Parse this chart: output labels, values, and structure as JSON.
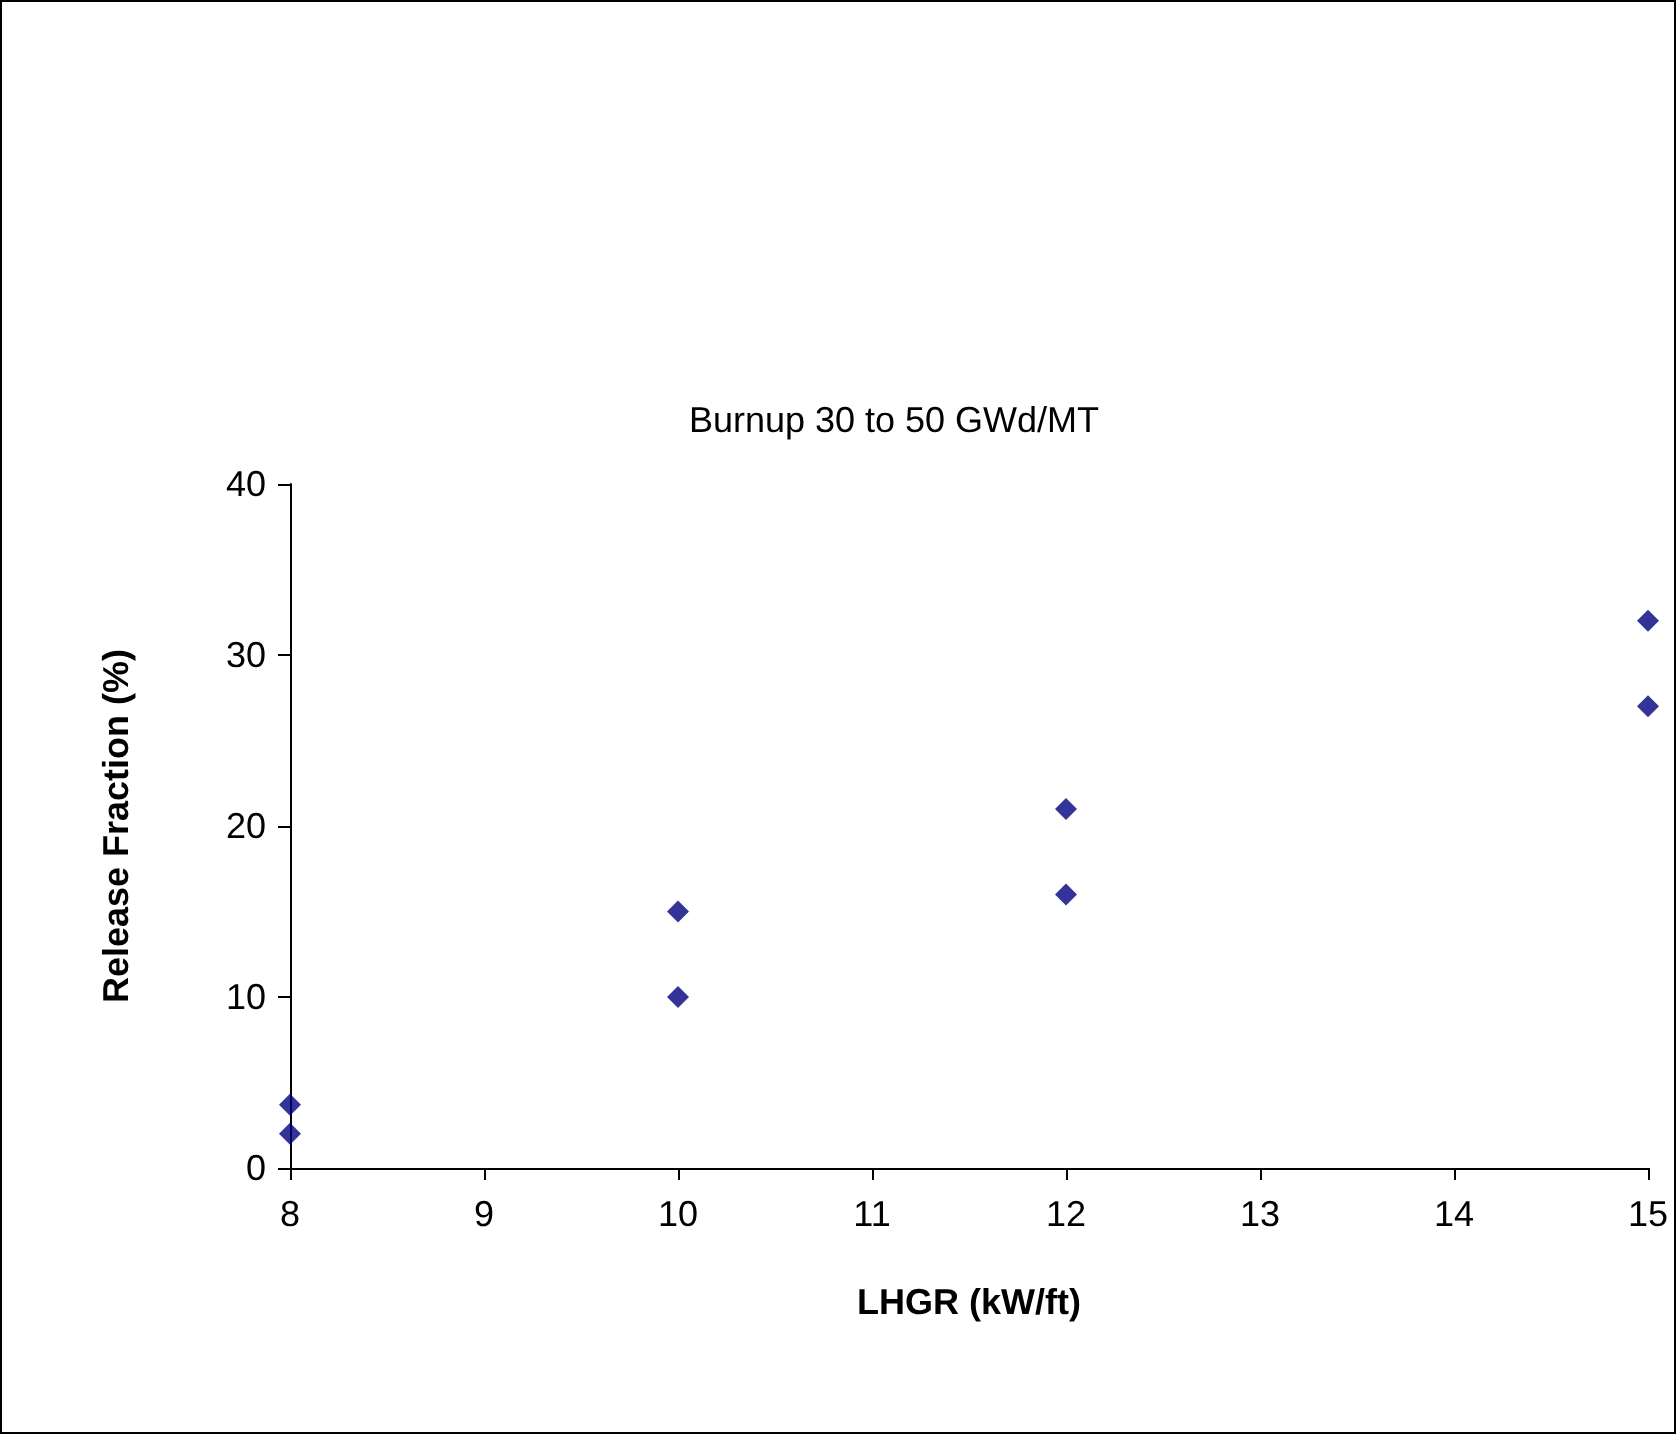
{
  "chart_data": {
    "type": "scatter",
    "title": "Burnup 30 to 50 GWd/MT",
    "xlabel": "LHGR (kW/ft)",
    "ylabel": "Release Fraction (%)",
    "x": [
      8,
      8,
      10,
      10,
      12,
      12,
      15,
      15
    ],
    "series": [
      {
        "color": "#000080",
        "values": [
          3.7,
          2,
          15,
          10,
          21,
          16,
          32,
          27
        ]
      }
    ],
    "xlim": [
      8,
      15
    ],
    "xticks": [
      8,
      9,
      10,
      11,
      12,
      13,
      14,
      15
    ],
    "ylim": [
      0,
      40
    ],
    "yticks": [
      0,
      10,
      20,
      30,
      40
    ],
    "grid": false,
    "marker": "diamond"
  }
}
